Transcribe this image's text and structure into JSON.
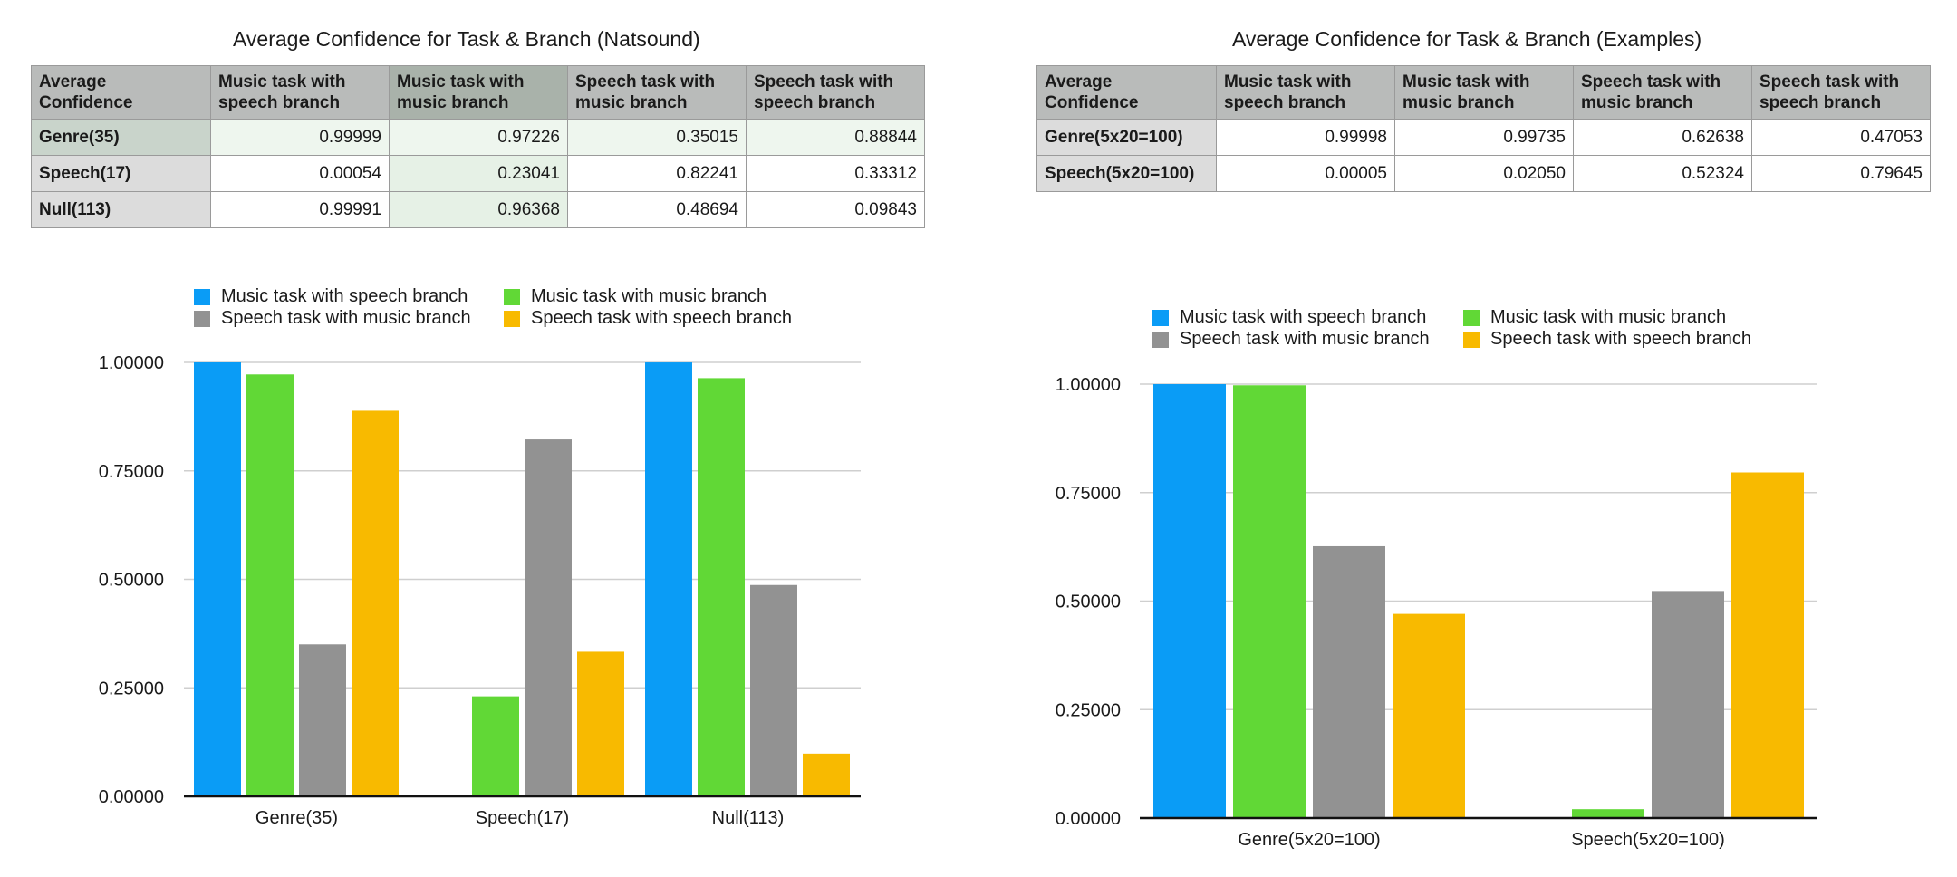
{
  "colors": {
    "blue": "#0a9cf6",
    "green": "#61d836",
    "gray": "#929292",
    "orange": "#f8ba00"
  },
  "left": {
    "title": "Average Confidence for Task & Branch (Natsound)",
    "table": {
      "headers": [
        "Average Confidence",
        "Music task with speech branch",
        "Music task with music branch",
        "Speech task with music branch",
        "Speech task with speech branch"
      ],
      "rows": [
        {
          "label": "Genre(35)",
          "cells": [
            "0.99999",
            "0.97226",
            "0.35015",
            "0.88844"
          ]
        },
        {
          "label": "Speech(17)",
          "cells": [
            "0.00054",
            "0.23041",
            "0.82241",
            "0.33312"
          ]
        },
        {
          "label": "Null(113)",
          "cells": [
            "0.99991",
            "0.96368",
            "0.48694",
            "0.09843"
          ]
        }
      ]
    }
  },
  "right": {
    "title": "Average Confidence for Task & Branch (Examples)",
    "table": {
      "headers": [
        "Average Confidence",
        "Music task with speech branch",
        "Music task with music branch",
        "Speech task with music branch",
        "Speech task with speech branch"
      ],
      "rows": [
        {
          "label": "Genre(5x20=100)",
          "cells": [
            "0.99998",
            "0.99735",
            "0.62638",
            "0.47053"
          ]
        },
        {
          "label": "Speech(5x20=100)",
          "cells": [
            "0.00005",
            "0.02050",
            "0.52324",
            "0.79645"
          ]
        }
      ]
    }
  },
  "chart_data": [
    {
      "type": "bar",
      "title": "",
      "categories": [
        "Genre(35)",
        "Speech(17)",
        "Null(113)"
      ],
      "series": [
        {
          "name": "Music task with speech branch",
          "color": "#0a9cf6",
          "values": [
            0.99999,
            0.00054,
            0.99991
          ]
        },
        {
          "name": "Music task with music branch",
          "color": "#61d836",
          "values": [
            0.97226,
            0.23041,
            0.96368
          ]
        },
        {
          "name": "Speech task with music branch",
          "color": "#929292",
          "values": [
            0.35015,
            0.82241,
            0.48694
          ]
        },
        {
          "name": "Speech task with speech branch",
          "color": "#f8ba00",
          "values": [
            0.88844,
            0.33312,
            0.09843
          ]
        }
      ],
      "yticks": [
        "0.00000",
        "0.25000",
        "0.50000",
        "0.75000",
        "1.00000"
      ],
      "ylim": [
        0,
        1
      ],
      "grid": true,
      "legend": "top"
    },
    {
      "type": "bar",
      "title": "",
      "categories": [
        "Genre(5x20=100)",
        "Speech(5x20=100)"
      ],
      "series": [
        {
          "name": "Music task with speech branch",
          "color": "#0a9cf6",
          "values": [
            0.99998,
            5e-05
          ]
        },
        {
          "name": "Music task with music branch",
          "color": "#61d836",
          "values": [
            0.99735,
            0.0205
          ]
        },
        {
          "name": "Speech task with music branch",
          "color": "#929292",
          "values": [
            0.62638,
            0.52324
          ]
        },
        {
          "name": "Speech task with speech branch",
          "color": "#f8ba00",
          "values": [
            0.47053,
            0.79645
          ]
        }
      ],
      "yticks": [
        "0.00000",
        "0.25000",
        "0.50000",
        "0.75000",
        "1.00000"
      ],
      "ylim": [
        0,
        1
      ],
      "grid": true,
      "legend": "top"
    }
  ]
}
